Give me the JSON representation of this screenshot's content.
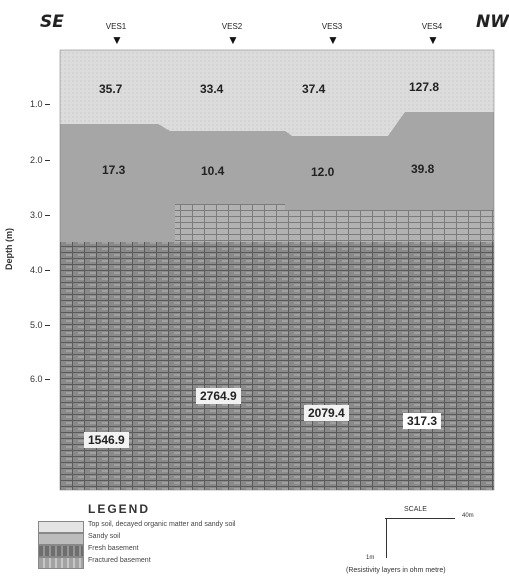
{
  "directions": {
    "left": "SE",
    "right": "NW"
  },
  "soundings": [
    "VES1",
    "VES2",
    "VES3",
    "VES4"
  ],
  "axis": {
    "label": "Depth (m)",
    "ticks": [
      "1.0",
      "2.0",
      "3.0",
      "4.0",
      "5.0",
      "6.0"
    ]
  },
  "resistivities": {
    "topsoil": [
      "35.7",
      "33.4",
      "37.4",
      "127.8"
    ],
    "clay": [
      "17.3",
      "10.4",
      "12.0",
      "39.8"
    ],
    "fresh_basement": [
      "1546.9",
      "2764.9",
      "2079.4",
      "317.3"
    ]
  },
  "colors": {
    "topsoil": "#dcdcdc",
    "clay": "#a8a8a8",
    "fresh_basement": "#8a8a8a",
    "weathered": "#b2b2b2"
  },
  "legend": {
    "title": "LEGEND",
    "items": [
      "Top soil, decayed organic matter and sandy soil",
      "Sandy soil",
      "Fresh basement",
      "Fractured basement"
    ]
  },
  "scale": {
    "title": "SCALE",
    "horizontal": "40m",
    "vertical": "1m"
  },
  "note": "(Resistivity layers in ohm metre)"
}
